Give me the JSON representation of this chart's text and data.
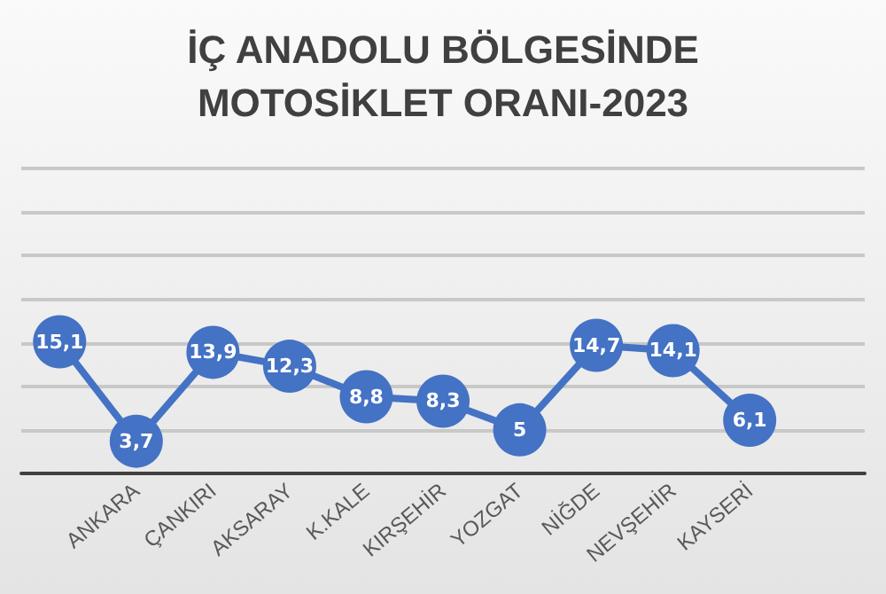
{
  "chart_data": {
    "type": "line",
    "title": "İÇ ANADOLU BÖLGESİNDE\nMOTOSİKLET ORANI-2023",
    "categories": [
      null,
      "ANKARA",
      "ÇANKIRI",
      "AKSARAY",
      "K.KALE",
      "KIRŞEHİR",
      "YOZGAT",
      "NİĞDE",
      "NEVŞEHİR",
      "KAYSERİ",
      null
    ],
    "series": [
      {
        "color": "#4472c4",
        "values": [
          15.1,
          3.7,
          13.9,
          12.3,
          8.8,
          8.3,
          5,
          14.7,
          14.1,
          6.1,
          null
        ],
        "value_labels": [
          "15,1",
          "3,7",
          "13,9",
          "12,3",
          "8,8",
          "8,3",
          "5",
          "14,7",
          "14,1",
          "6,1",
          null
        ]
      }
    ],
    "ylim": [
      0,
      35
    ],
    "yticks": [
      {
        "value": 0,
        "label": null
      },
      {
        "value": 5,
        "label": null
      },
      {
        "value": 10,
        "label": null
      },
      {
        "value": 15,
        "label": null
      },
      {
        "value": 20,
        "label": null
      },
      {
        "value": 25,
        "label": null
      },
      {
        "value": 30,
        "label": null
      },
      {
        "value": 35,
        "label": null
      }
    ],
    "grid": "y",
    "marker": "circle",
    "line_style": "solid",
    "tick_labels": "x"
  }
}
